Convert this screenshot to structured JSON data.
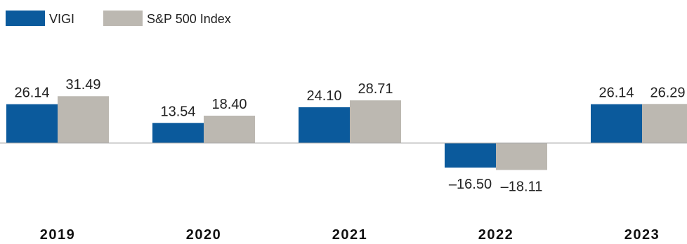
{
  "chart_data": {
    "type": "bar",
    "categories": [
      "2019",
      "2020",
      "2021",
      "2022",
      "2023"
    ],
    "series": [
      {
        "name": "VIGI",
        "color": "#0b5a9c",
        "values": [
          26.14,
          13.54,
          24.1,
          -16.5,
          26.14
        ],
        "labels": [
          "26.14",
          "13.54",
          "24.10",
          "–16.50",
          "26.14"
        ]
      },
      {
        "name": "S&P 500 Index",
        "color": "#bcb8b1",
        "values": [
          31.49,
          18.4,
          28.71,
          -18.11,
          26.29
        ],
        "labels": [
          "31.49",
          "18.40",
          "28.71",
          "–18.11",
          "26.29"
        ]
      }
    ],
    "legend_position": "top-left",
    "title": "",
    "xlabel": "",
    "ylabel": "",
    "grid": false
  }
}
